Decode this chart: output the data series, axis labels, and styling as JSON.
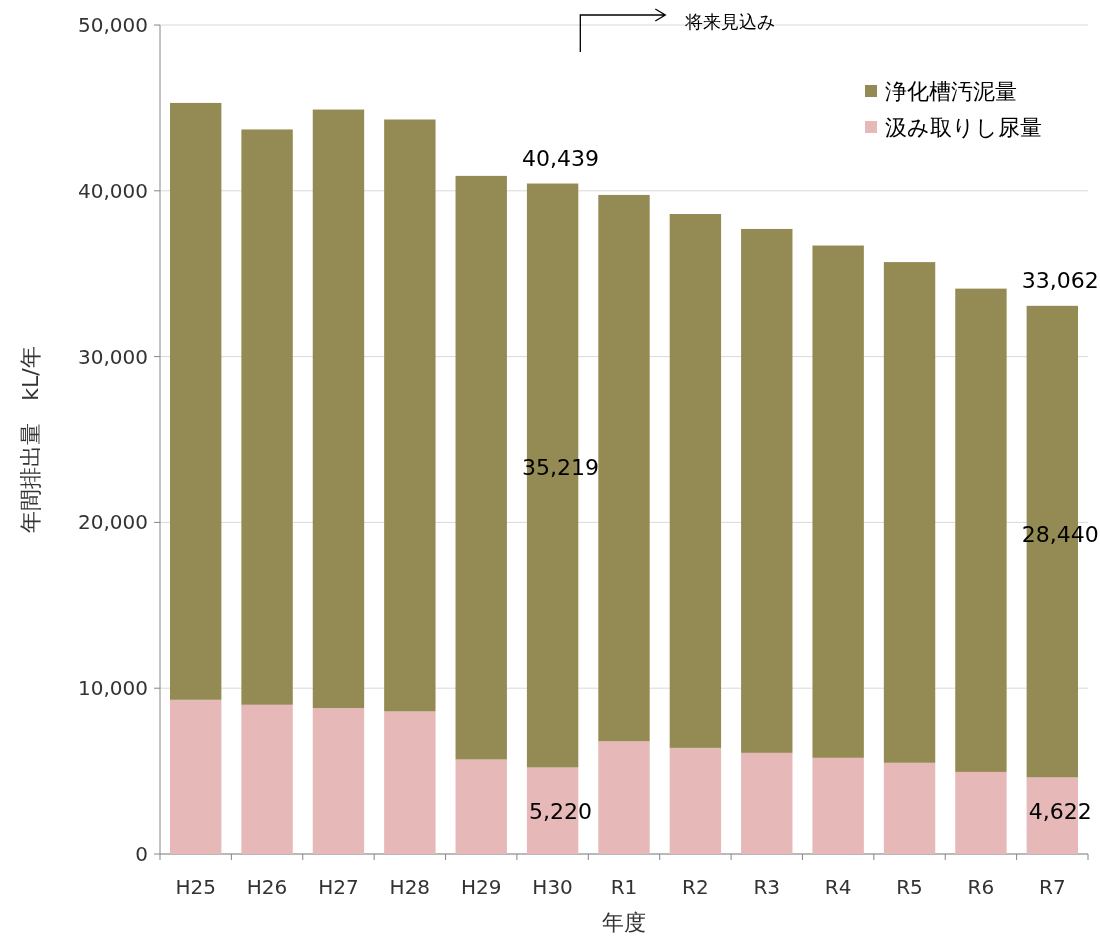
{
  "chart_data": {
    "type": "bar",
    "stacked": true,
    "xlabel": "年度",
    "ylabel": "年間排出量　kL/年",
    "categories": [
      "H25",
      "H26",
      "H27",
      "H28",
      "H29",
      "H30",
      "R1",
      "R2",
      "R3",
      "R4",
      "R5",
      "R6",
      "R7"
    ],
    "series": [
      {
        "name": "汲み取りし尿量",
        "color": "#e6b8b7",
        "values": [
          9300,
          9000,
          8800,
          8600,
          5700,
          5220,
          6800,
          6400,
          6100,
          5800,
          5500,
          4950,
          4622
        ],
        "value_labels": [
          null,
          null,
          null,
          null,
          null,
          "5,220",
          null,
          null,
          null,
          null,
          null,
          null,
          "4,622"
        ]
      },
      {
        "name": "浄化槽汚泥量",
        "color": "#948b54",
        "values": [
          36000,
          34700,
          36100,
          35700,
          35200,
          35219,
          32950,
          32200,
          31600,
          30900,
          30200,
          29150,
          28440
        ],
        "value_labels": [
          null,
          null,
          null,
          null,
          null,
          "35,219",
          null,
          null,
          null,
          null,
          null,
          null,
          "28,440"
        ]
      }
    ],
    "totals": [
      null,
      null,
      null,
      null,
      null,
      "40,439",
      null,
      null,
      null,
      null,
      null,
      null,
      "33,062"
    ],
    "ylim": [
      0,
      50000
    ],
    "yticks": [
      {
        "value": 0,
        "label": "0"
      },
      {
        "value": 10000,
        "label": "10,000"
      },
      {
        "value": 20000,
        "label": "20,000"
      },
      {
        "value": 30000,
        "label": "30,000"
      },
      {
        "value": 40000,
        "label": "40,000"
      },
      {
        "value": 50000,
        "label": "50,000"
      }
    ],
    "grid": "y",
    "legend": "top right",
    "annotations": [
      "将来見込み"
    ]
  }
}
